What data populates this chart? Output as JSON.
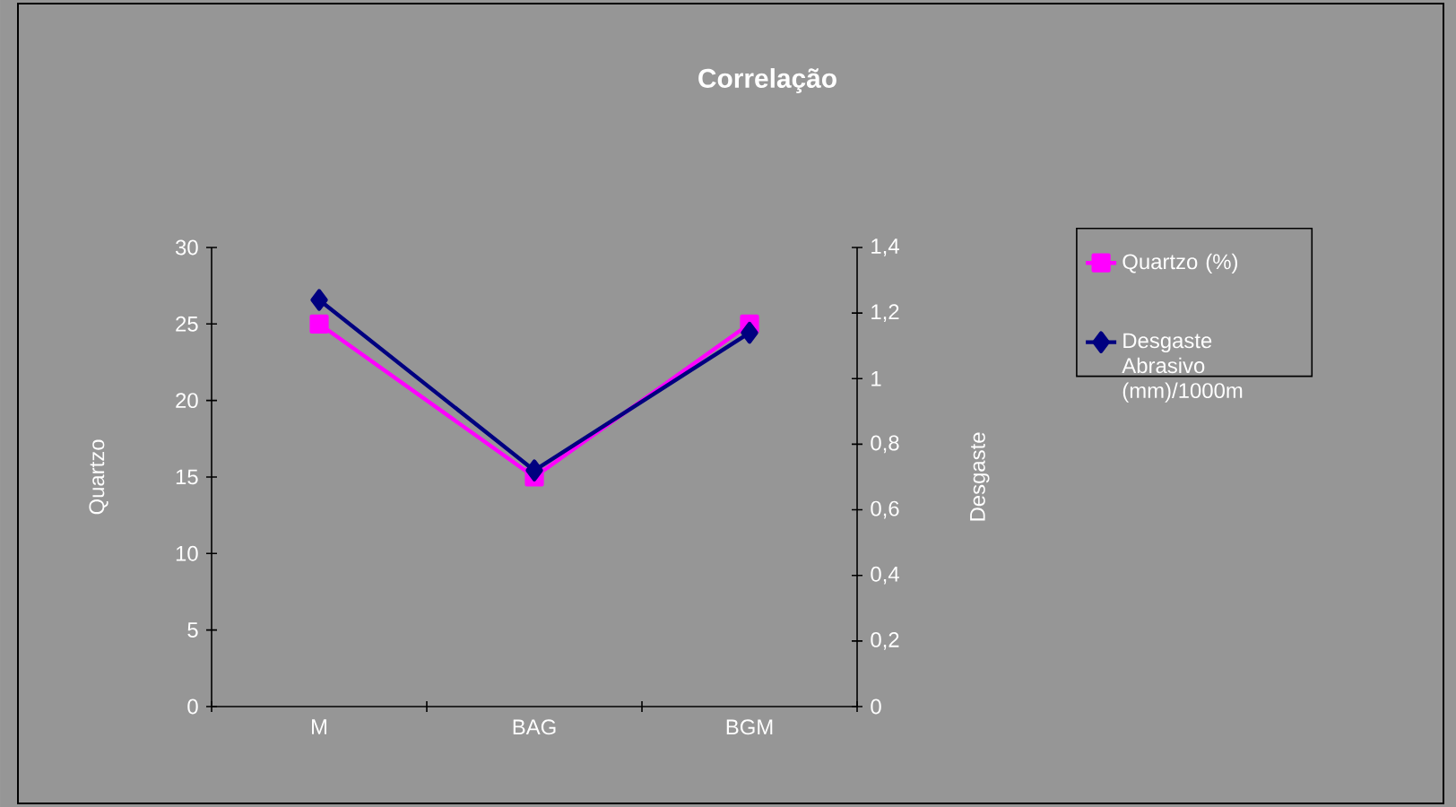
{
  "chart_data": {
    "type": "line",
    "title": "Correlação",
    "ylabel": "Quartzo",
    "y2label": "Desgaste",
    "categories": [
      "M",
      "BAG",
      "BGM"
    ],
    "series": [
      {
        "name": "Quartzo (%)",
        "color": "#ff00ff",
        "marker": "square",
        "values": [
          25,
          15,
          25
        ]
      },
      {
        "name": "Desgaste Abrasivo (mm)/1000m",
        "color": "#000080",
        "marker": "diamond",
        "axis": "y2",
        "values": [
          1.24,
          0.72,
          1.14
        ]
      }
    ],
    "ylim": [
      0,
      30
    ],
    "yticks": [
      0,
      5,
      10,
      15,
      20,
      25,
      30
    ],
    "y2lim": [
      0,
      1.4
    ],
    "y2ticks": [
      0,
      {
        "value": 0.2,
        "label": "0,2"
      },
      {
        "value": 0.4,
        "label": "0,4"
      },
      {
        "value": 0.6,
        "label": "0,6"
      },
      {
        "value": 0.8,
        "label": "0,8"
      },
      1,
      {
        "value": 1.2,
        "label": "1,2"
      },
      {
        "value": 1.4,
        "label": "1,4"
      }
    ],
    "legend": "right"
  }
}
